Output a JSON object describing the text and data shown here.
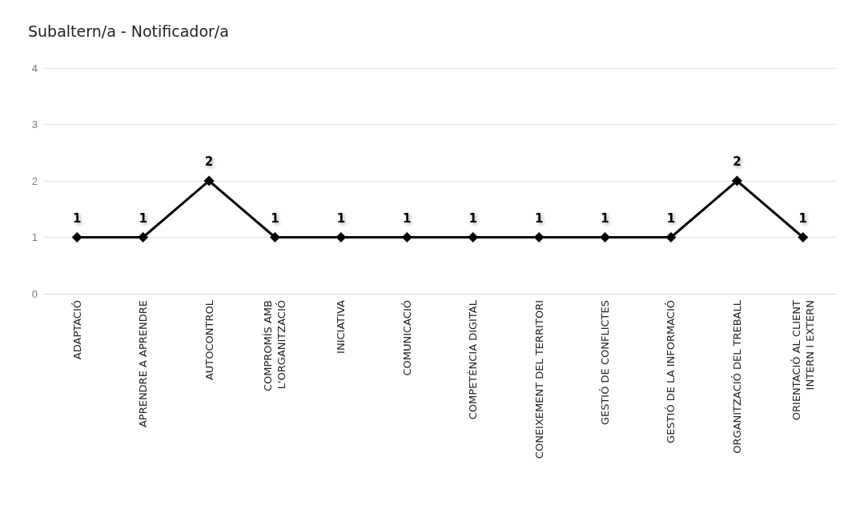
{
  "chart_data": {
    "type": "line",
    "title": "Subaltern/a - Notificador/a",
    "categories": [
      "ADAPTACIÓ",
      "APRENDRE A APRENDRE",
      "AUTOCONTROL",
      "COMPROMÍS AMB\nL'ORGANITZACIÓ",
      "INICIATIVA",
      "COMUNICACIÓ",
      "COMPETÈNCIA DIGITAL",
      "CONEIXEMENT DEL TERRITORI",
      "GESTIÓ DE CONFLICTES",
      "GESTIÓ DE LA INFORMACIÓ",
      "ORGANITZACIÓ DEL TREBALL",
      "ORIENTACIÓ AL CLIENT\nINTERN I EXTERN"
    ],
    "series": [
      {
        "color": "#000000",
        "values": [
          1,
          1,
          2,
          1,
          1,
          1,
          1,
          1,
          1,
          1,
          2,
          1
        ]
      }
    ],
    "ylim": [
      0,
      4
    ],
    "yticks": [
      0,
      1,
      2,
      3,
      4
    ],
    "grid": "y",
    "marker": "diamond",
    "line_style": "solid",
    "data_labels": true
  }
}
